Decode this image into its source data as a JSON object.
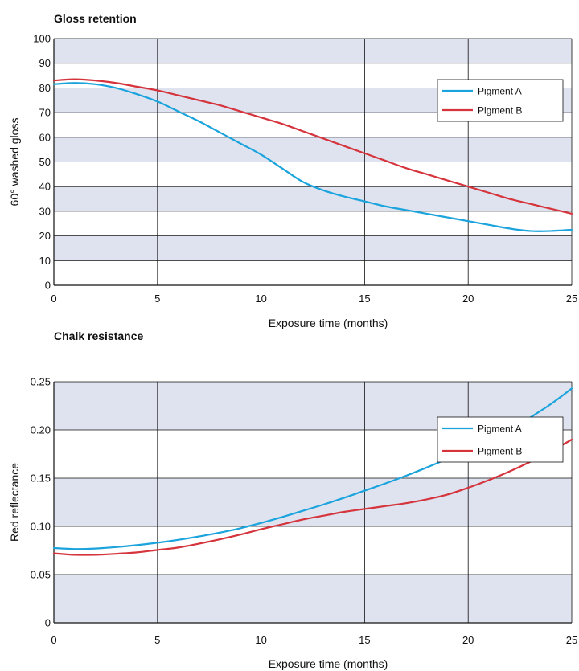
{
  "colors": {
    "band": "#dfe3f0",
    "grid": "#111111",
    "pigment_a": "#1aa3dc",
    "pigment_b": "#d6343c"
  },
  "chart_data": [
    {
      "type": "line",
      "title": "Gloss retention",
      "xlabel": "Exposure time (months)",
      "ylabel": "60° washed gloss",
      "xlim": [
        0,
        25
      ],
      "ylim": [
        0,
        100
      ],
      "xticks": [
        "0",
        "5",
        "10",
        "15",
        "20",
        "25"
      ],
      "yticks": [
        "0",
        "10",
        "20",
        "30",
        "40",
        "50",
        "60",
        "70",
        "80",
        "90",
        "100"
      ],
      "grid": true,
      "legend_position": "top-right",
      "series": [
        {
          "name": "Pigment A",
          "color": "#1aa3dc",
          "points": [
            [
              0,
              81.5
            ],
            [
              1,
              82
            ],
            [
              2,
              81.5
            ],
            [
              3,
              80
            ],
            [
              4,
              77.5
            ],
            [
              5,
              74.5
            ],
            [
              6,
              70.5
            ],
            [
              7,
              66.5
            ],
            [
              8,
              62
            ],
            [
              9,
              57.5
            ],
            [
              10,
              53
            ],
            [
              11,
              47.5
            ],
            [
              12,
              42
            ],
            [
              13,
              38.5
            ],
            [
              14,
              36
            ],
            [
              15,
              34
            ],
            [
              16,
              32
            ],
            [
              17,
              30.5
            ],
            [
              18,
              29
            ],
            [
              19,
              27.5
            ],
            [
              20,
              26
            ],
            [
              21,
              24.5
            ],
            [
              22,
              23
            ],
            [
              23,
              22
            ],
            [
              24,
              22
            ],
            [
              25,
              22.5
            ]
          ]
        },
        {
          "name": "Pigment B",
          "color": "#d6343c",
          "points": [
            [
              0,
              83
            ],
            [
              1,
              83.5
            ],
            [
              2,
              83
            ],
            [
              3,
              82
            ],
            [
              4,
              80.5
            ],
            [
              5,
              79
            ],
            [
              6,
              77
            ],
            [
              7,
              75
            ],
            [
              8,
              73
            ],
            [
              9,
              70.5
            ],
            [
              10,
              68
            ],
            [
              11,
              65.5
            ],
            [
              12,
              62.5
            ],
            [
              13,
              59.5
            ],
            [
              14,
              56.5
            ],
            [
              15,
              53.5
            ],
            [
              16,
              50.5
            ],
            [
              17,
              47.5
            ],
            [
              18,
              45
            ],
            [
              19,
              42.5
            ],
            [
              20,
              40
            ],
            [
              21,
              37.5
            ],
            [
              22,
              35
            ],
            [
              23,
              33
            ],
            [
              24,
              31
            ],
            [
              25,
              29
            ]
          ]
        }
      ]
    },
    {
      "type": "line",
      "title": "Chalk resistance",
      "xlabel": "Exposure time (months)",
      "ylabel": "Red reflectance",
      "xlim": [
        0,
        25
      ],
      "ylim": [
        0,
        0.25
      ],
      "xticks": [
        "0",
        "5",
        "10",
        "15",
        "20",
        "25"
      ],
      "yticks": [
        "0",
        "0.05",
        "0.10",
        "0.15",
        "0.20",
        "0.25"
      ],
      "grid": true,
      "legend_position": "right",
      "series": [
        {
          "name": "Pigment A",
          "color": "#1aa3dc",
          "points": [
            [
              0,
              0.0775
            ],
            [
              1,
              0.0765
            ],
            [
              2,
              0.077
            ],
            [
              3,
              0.0785
            ],
            [
              4,
              0.0805
            ],
            [
              5,
              0.083
            ],
            [
              6,
              0.086
            ],
            [
              7,
              0.0895
            ],
            [
              8,
              0.0935
            ],
            [
              9,
              0.098
            ],
            [
              10,
              0.1035
            ],
            [
              11,
              0.1095
            ],
            [
              12,
              0.116
            ],
            [
              13,
              0.1225
            ],
            [
              14,
              0.1295
            ],
            [
              15,
              0.137
            ],
            [
              16,
              0.1445
            ],
            [
              17,
              0.1525
            ],
            [
              18,
              0.161
            ],
            [
              19,
              0.17
            ],
            [
              20,
              0.179
            ],
            [
              21,
              0.189
            ],
            [
              22,
              0.2
            ],
            [
              23,
              0.213
            ],
            [
              24,
              0.227
            ],
            [
              25,
              0.243
            ]
          ]
        },
        {
          "name": "Pigment B",
          "color": "#d6343c",
          "points": [
            [
              0,
              0.072
            ],
            [
              1,
              0.0705
            ],
            [
              2,
              0.0705
            ],
            [
              3,
              0.0715
            ],
            [
              4,
              0.073
            ],
            [
              5,
              0.0755
            ],
            [
              6,
              0.078
            ],
            [
              7,
              0.082
            ],
            [
              8,
              0.0865
            ],
            [
              9,
              0.0915
            ],
            [
              10,
              0.097
            ],
            [
              11,
              0.102
            ],
            [
              12,
              0.107
            ],
            [
              13,
              0.111
            ],
            [
              14,
              0.115
            ],
            [
              15,
              0.118
            ],
            [
              16,
              0.121
            ],
            [
              17,
              0.124
            ],
            [
              18,
              0.128
            ],
            [
              19,
              0.133
            ],
            [
              20,
              0.14
            ],
            [
              21,
              0.148
            ],
            [
              22,
              0.157
            ],
            [
              23,
              0.167
            ],
            [
              24,
              0.178
            ],
            [
              25,
              0.19
            ]
          ]
        }
      ]
    }
  ]
}
